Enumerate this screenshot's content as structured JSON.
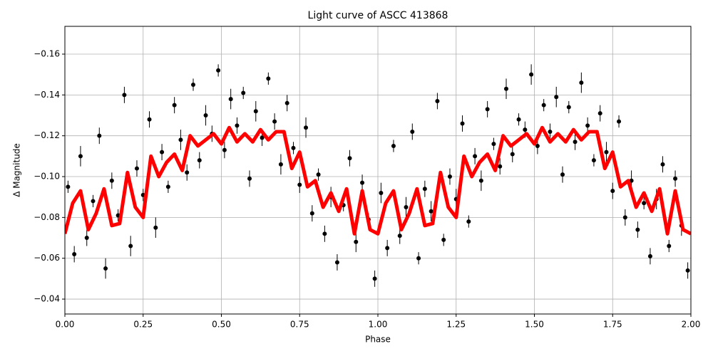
{
  "chart_data": {
    "type": "scatter",
    "title": "Light curve of ASCC 413868",
    "xlabel": "Phase",
    "ylabel": "Δ Magnitude",
    "xlim": [
      0,
      2
    ],
    "ylim": [
      -0.0327,
      -0.1736
    ],
    "grid": true,
    "xticks": [
      {
        "value": 0,
        "label": "0.00"
      },
      {
        "value": 0.25,
        "label": "0.25"
      },
      {
        "value": 0.5,
        "label": "0.50"
      },
      {
        "value": 0.75,
        "label": "0.75"
      },
      {
        "value": 1,
        "label": "1.00"
      },
      {
        "value": 1.25,
        "label": "1.25"
      },
      {
        "value": 1.5,
        "label": "1.50"
      },
      {
        "value": 1.75,
        "label": "1.75"
      },
      {
        "value": 2,
        "label": "2.00"
      }
    ],
    "yticks": [
      {
        "value": -0.04,
        "label": "−0.04"
      },
      {
        "value": -0.06,
        "label": "−0.06"
      },
      {
        "value": -0.08,
        "label": "−0.08"
      },
      {
        "value": -0.1,
        "label": "−0.10"
      },
      {
        "value": -0.12,
        "label": "−0.12"
      },
      {
        "value": -0.14,
        "label": "−0.14"
      },
      {
        "value": -0.16,
        "label": "−0.16"
      }
    ],
    "series": [
      {
        "type": "errorbar",
        "color": "#000000",
        "x": [
          0.01,
          0.03,
          0.05,
          0.07,
          0.09,
          0.11,
          0.13,
          0.15,
          0.17,
          0.19,
          0.21,
          0.23,
          0.25,
          0.27,
          0.29,
          0.31,
          0.33,
          0.35,
          0.37,
          0.39,
          0.41,
          0.43,
          0.45,
          0.47,
          0.49,
          0.51,
          0.53,
          0.55,
          0.57,
          0.59,
          0.61,
          0.63,
          0.65,
          0.67,
          0.69,
          0.71,
          0.73,
          0.75,
          0.77,
          0.79,
          0.81,
          0.83,
          0.85,
          0.87,
          0.89,
          0.91,
          0.93,
          0.95,
          0.97,
          0.99,
          1.01,
          1.03,
          1.05,
          1.07,
          1.09,
          1.11,
          1.13,
          1.15,
          1.17,
          1.19,
          1.21,
          1.23,
          1.25,
          1.27,
          1.29,
          1.31,
          1.33,
          1.35,
          1.37,
          1.39,
          1.41,
          1.43,
          1.45,
          1.47,
          1.49,
          1.51,
          1.53,
          1.55,
          1.57,
          1.59,
          1.61,
          1.63,
          1.65,
          1.67,
          1.69,
          1.71,
          1.73,
          1.75,
          1.77,
          1.79,
          1.81,
          1.83,
          1.85,
          1.87,
          1.89,
          1.91,
          1.93,
          1.95,
          1.97,
          1.99
        ],
        "values": [
          -0.095,
          -0.062,
          -0.11,
          -0.07,
          -0.088,
          -0.12,
          -0.055,
          -0.098,
          -0.081,
          -0.14,
          -0.066,
          -0.104,
          -0.091,
          -0.128,
          -0.075,
          -0.112,
          -0.095,
          -0.135,
          -0.118,
          -0.102,
          -0.145,
          -0.108,
          -0.13,
          -0.121,
          -0.152,
          -0.113,
          -0.138,
          -0.125,
          -0.141,
          -0.099,
          -0.132,
          -0.119,
          -0.148,
          -0.127,
          -0.106,
          -0.136,
          -0.114,
          -0.096,
          -0.124,
          -0.082,
          -0.101,
          -0.072,
          -0.09,
          -0.058,
          -0.086,
          -0.109,
          -0.068,
          -0.097,
          -0.079,
          -0.05,
          -0.092,
          -0.065,
          -0.115,
          -0.071,
          -0.085,
          -0.122,
          -0.06,
          -0.094,
          -0.083,
          -0.137,
          -0.069,
          -0.1,
          -0.089,
          -0.126,
          -0.078,
          -0.11,
          -0.098,
          -0.133,
          -0.116,
          -0.105,
          -0.143,
          -0.111,
          -0.128,
          -0.123,
          -0.15,
          -0.115,
          -0.135,
          -0.122,
          -0.139,
          -0.101,
          -0.134,
          -0.117,
          -0.146,
          -0.125,
          -0.108,
          -0.131,
          -0.112,
          -0.093,
          -0.127,
          -0.08,
          -0.098,
          -0.074,
          -0.087,
          -0.061,
          -0.089,
          -0.106,
          -0.066,
          -0.099,
          -0.076,
          -0.054
        ],
        "errors": [
          0.003,
          0.004,
          0.005,
          0.004,
          0.003,
          0.004,
          0.005,
          0.004,
          0.003,
          0.004,
          0.005,
          0.004,
          0.003,
          0.004,
          0.005,
          0.004,
          0.003,
          0.004,
          0.005,
          0.004,
          0.003,
          0.004,
          0.005,
          0.004,
          0.003,
          0.004,
          0.005,
          0.004,
          0.003,
          0.004,
          0.005,
          0.004,
          0.003,
          0.004,
          0.005,
          0.004,
          0.003,
          0.004,
          0.005,
          0.004,
          0.003,
          0.004,
          0.005,
          0.004,
          0.003,
          0.004,
          0.005,
          0.004,
          0.003,
          0.004,
          0.005,
          0.004,
          0.003,
          0.004,
          0.005,
          0.004,
          0.003,
          0.004,
          0.005,
          0.004,
          0.003,
          0.004,
          0.005,
          0.004,
          0.003,
          0.004,
          0.005,
          0.004,
          0.003,
          0.004,
          0.005,
          0.004,
          0.003,
          0.004,
          0.005,
          0.004,
          0.003,
          0.004,
          0.005,
          0.004,
          0.003,
          0.004,
          0.005,
          0.004,
          0.003,
          0.004,
          0.005,
          0.004,
          0.003,
          0.004,
          0.005,
          0.004,
          0.003,
          0.004,
          0.005,
          0.004,
          0.003,
          0.004,
          0.005,
          0.004
        ]
      },
      {
        "type": "line",
        "color": "#ff0000",
        "x": [
          0,
          0.025,
          0.05,
          0.075,
          0.1,
          0.125,
          0.15,
          0.175,
          0.2,
          0.225,
          0.25,
          0.275,
          0.3,
          0.325,
          0.35,
          0.375,
          0.4,
          0.425,
          0.45,
          0.475,
          0.5,
          0.525,
          0.55,
          0.575,
          0.6,
          0.625,
          0.65,
          0.675,
          0.7,
          0.725,
          0.75,
          0.775,
          0.8,
          0.825,
          0.85,
          0.875,
          0.9,
          0.925,
          0.95,
          0.975,
          1,
          1.025,
          1.05,
          1.075,
          1.1,
          1.125,
          1.15,
          1.175,
          1.2,
          1.225,
          1.25,
          1.275,
          1.3,
          1.325,
          1.35,
          1.375,
          1.4,
          1.425,
          1.45,
          1.475,
          1.5,
          1.525,
          1.55,
          1.575,
          1.6,
          1.625,
          1.65,
          1.675,
          1.7,
          1.725,
          1.75,
          1.775,
          1.8,
          1.825,
          1.85,
          1.875,
          1.9,
          1.925,
          1.95,
          1.975,
          2
        ],
        "values": [
          -0.072,
          -0.087,
          -0.093,
          -0.074,
          -0.082,
          -0.094,
          -0.076,
          -0.077,
          -0.102,
          -0.085,
          -0.08,
          -0.11,
          -0.1,
          -0.107,
          -0.111,
          -0.103,
          -0.12,
          -0.115,
          -0.118,
          -0.121,
          -0.116,
          -0.124,
          -0.117,
          -0.121,
          -0.117,
          -0.123,
          -0.118,
          -0.122,
          -0.122,
          -0.104,
          -0.112,
          -0.095,
          -0.098,
          -0.085,
          -0.092,
          -0.083,
          -0.094,
          -0.072,
          -0.093,
          -0.074,
          -0.072,
          -0.087,
          -0.093,
          -0.074,
          -0.082,
          -0.094,
          -0.076,
          -0.077,
          -0.102,
          -0.085,
          -0.08,
          -0.11,
          -0.1,
          -0.107,
          -0.111,
          -0.103,
          -0.12,
          -0.115,
          -0.118,
          -0.121,
          -0.116,
          -0.124,
          -0.117,
          -0.121,
          -0.117,
          -0.123,
          -0.118,
          -0.122,
          -0.122,
          -0.104,
          -0.112,
          -0.095,
          -0.098,
          -0.085,
          -0.092,
          -0.083,
          -0.094,
          -0.072,
          -0.093,
          -0.074,
          -0.072
        ]
      }
    ]
  }
}
